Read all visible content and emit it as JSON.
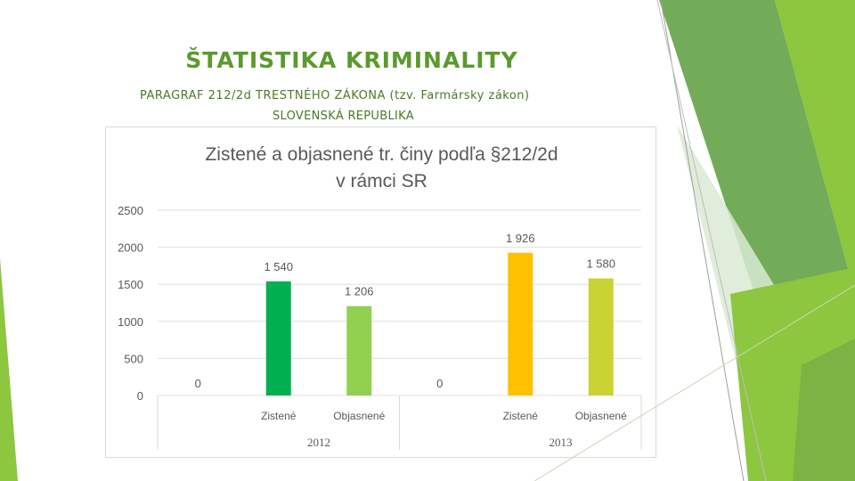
{
  "slide": {
    "title": "ŠTATISTIKA  KRIMINALITY",
    "subtitle_line1": "PARAGRAF 212/2d  TRESTNÉHO ZÁKONA (tzv. Farmársky zákon)",
    "subtitle_line2": "SLOVENSKÁ REPUBLIKA"
  },
  "colors": {
    "title_green": "#5b9a2d",
    "accent_dark_green": "#4e8a2a",
    "accent_light_green": "#8dc63f"
  },
  "chart_data": {
    "type": "bar",
    "title_lines": [
      "Zistené a objasnené  tr. činy podľa §212/2d",
      "v rámci SR"
    ],
    "ylim": [
      0,
      2500
    ],
    "yticks": [
      0,
      500,
      1000,
      1500,
      2000,
      2500
    ],
    "grid": true,
    "legend": "none",
    "groups": [
      {
        "label": "2012",
        "leading_value_label": "0",
        "bars": [
          {
            "category": "Zistené",
            "value": 1540,
            "label": "1 540",
            "color": "#00b050"
          },
          {
            "category": "Objasnené",
            "value": 1206,
            "label": "1 206",
            "color": "#92d050"
          }
        ]
      },
      {
        "label": "2013",
        "leading_value_label": "0",
        "bars": [
          {
            "category": "Zistené",
            "value": 1926,
            "label": "1 926",
            "color": "#ffc000"
          },
          {
            "category": "Objasnené",
            "value": 1580,
            "label": "1 580",
            "color": "#c9d334"
          }
        ]
      }
    ]
  }
}
